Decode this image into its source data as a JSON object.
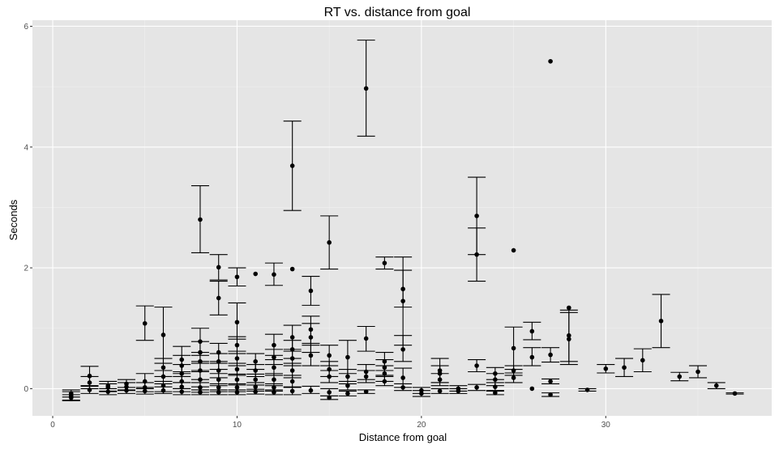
{
  "chart_data": {
    "type": "scatter",
    "title": "RT vs. distance from goal",
    "xlabel": "Distance from goal",
    "ylabel": "Seconds",
    "xlim": [
      -1.1,
      39
    ],
    "ylim": [
      -0.45,
      6.1
    ],
    "x_ticks": [
      0,
      10,
      20,
      30
    ],
    "x_tick_labels": [
      "0",
      "10",
      "20",
      "30"
    ],
    "y_ticks": [
      0,
      2,
      4,
      6
    ],
    "y_tick_labels": [
      "0",
      "2",
      "4",
      "6"
    ],
    "grid": true,
    "legend": "none",
    "colors": {
      "panel": "#e5e5e5",
      "grid_major": "#ffffff",
      "grid_minor": "#f0f0f0",
      "marks": "#000000"
    },
    "series": [
      {
        "points": [
          {
            "x": 1,
            "y": -0.12,
            "lo": -0.19,
            "hi": -0.05
          },
          {
            "x": 1,
            "y": -0.08,
            "lo": -0.14,
            "hi": -0.02
          },
          {
            "x": 1,
            "y": -0.15,
            "lo": -0.2,
            "hi": -0.1
          },
          {
            "x": 2,
            "y": 0.21,
            "lo": 0.05,
            "hi": 0.37
          },
          {
            "x": 2,
            "y": 0.1,
            "lo": 0.0,
            "hi": 0.2
          },
          {
            "x": 2,
            "y": -0.02,
            "lo": -0.08,
            "hi": 0.04
          },
          {
            "x": 3,
            "y": 0.05,
            "lo": -0.05,
            "hi": 0.12
          },
          {
            "x": 3,
            "y": -0.05,
            "lo": -0.1,
            "hi": 0.0
          },
          {
            "x": 3,
            "y": 0.02,
            "lo": -0.04,
            "hi": 0.08
          },
          {
            "x": 4,
            "y": 0.08,
            "lo": -0.02,
            "hi": 0.15
          },
          {
            "x": 4,
            "y": -0.03,
            "lo": -0.08,
            "hi": 0.02
          },
          {
            "x": 4,
            "y": 0.03,
            "lo": -0.03,
            "hi": 0.1
          },
          {
            "x": 5,
            "y": 1.08,
            "lo": 0.8,
            "hi": 1.37
          },
          {
            "x": 5,
            "y": 0.12,
            "lo": 0.0,
            "hi": 0.25
          },
          {
            "x": 5,
            "y": 0.02,
            "lo": -0.05,
            "hi": 0.1
          },
          {
            "x": 5,
            "y": -0.04,
            "lo": -0.09,
            "hi": 0.02
          },
          {
            "x": 6,
            "y": 0.89,
            "lo": 0.42,
            "hi": 1.35
          },
          {
            "x": 6,
            "y": 0.35,
            "lo": 0.2,
            "hi": 0.5
          },
          {
            "x": 6,
            "y": 0.2,
            "lo": 0.08,
            "hi": 0.3
          },
          {
            "x": 6,
            "y": 0.05,
            "lo": -0.05,
            "hi": 0.12
          },
          {
            "x": 6,
            "y": -0.03,
            "lo": -0.08,
            "hi": 0.03
          },
          {
            "x": 7,
            "y": 0.48,
            "lo": 0.28,
            "hi": 0.7
          },
          {
            "x": 7,
            "y": 0.38,
            "lo": 0.2,
            "hi": 0.55
          },
          {
            "x": 7,
            "y": 0.25,
            "lo": 0.1,
            "hi": 0.4
          },
          {
            "x": 7,
            "y": 0.12,
            "lo": 0.0,
            "hi": 0.25
          },
          {
            "x": 7,
            "y": 0.03,
            "lo": -0.05,
            "hi": 0.1
          },
          {
            "x": 7,
            "y": -0.05,
            "lo": -0.1,
            "hi": 0.0
          },
          {
            "x": 8,
            "y": 2.8,
            "lo": 2.25,
            "hi": 3.36
          },
          {
            "x": 8,
            "y": 0.78,
            "lo": 0.55,
            "hi": 1.0
          },
          {
            "x": 8,
            "y": 0.6,
            "lo": 0.42,
            "hi": 0.78
          },
          {
            "x": 8,
            "y": 0.45,
            "lo": 0.3,
            "hi": 0.6
          },
          {
            "x": 8,
            "y": 0.3,
            "lo": 0.15,
            "hi": 0.45
          },
          {
            "x": 8,
            "y": 0.15,
            "lo": 0.03,
            "hi": 0.28
          },
          {
            "x": 8,
            "y": 0.02,
            "lo": -0.06,
            "hi": 0.1
          },
          {
            "x": 8,
            "y": -0.06,
            "lo": -0.1,
            "hi": -0.02
          },
          {
            "x": 9,
            "y": 2.01,
            "lo": 1.8,
            "hi": 2.22
          },
          {
            "x": 9,
            "y": 1.5,
            "lo": 1.22,
            "hi": 1.78
          },
          {
            "x": 9,
            "y": 0.6,
            "lo": 0.45,
            "hi": 0.75
          },
          {
            "x": 9,
            "y": 0.45,
            "lo": 0.32,
            "hi": 0.58
          },
          {
            "x": 9,
            "y": 0.3,
            "lo": 0.18,
            "hi": 0.42
          },
          {
            "x": 9,
            "y": 0.15,
            "lo": 0.05,
            "hi": 0.25
          },
          {
            "x": 9,
            "y": 0.02,
            "lo": -0.05,
            "hi": 0.08
          },
          {
            "x": 9,
            "y": -0.06,
            "lo": -0.1,
            "hi": -0.02
          },
          {
            "x": 10,
            "y": 1.85,
            "lo": 1.7,
            "hi": 2.0
          },
          {
            "x": 10,
            "y": 1.1,
            "lo": 0.82,
            "hi": 1.42
          },
          {
            "x": 10,
            "y": 0.72,
            "lo": 0.58,
            "hi": 0.86
          },
          {
            "x": 10,
            "y": 0.5,
            "lo": 0.38,
            "hi": 0.62
          },
          {
            "x": 10,
            "y": 0.32,
            "lo": 0.22,
            "hi": 0.42
          },
          {
            "x": 10,
            "y": 0.15,
            "lo": 0.06,
            "hi": 0.24
          },
          {
            "x": 10,
            "y": 0.02,
            "lo": -0.05,
            "hi": 0.08
          },
          {
            "x": 10,
            "y": -0.06,
            "lo": -0.1,
            "hi": -0.02
          },
          {
            "x": 11,
            "y": 1.9
          },
          {
            "x": 11,
            "y": 0.45,
            "lo": 0.32,
            "hi": 0.58
          },
          {
            "x": 11,
            "y": 0.3,
            "lo": 0.2,
            "hi": 0.4
          },
          {
            "x": 11,
            "y": 0.15,
            "lo": 0.06,
            "hi": 0.24
          },
          {
            "x": 11,
            "y": 0.03,
            "lo": -0.04,
            "hi": 0.1
          },
          {
            "x": 11,
            "y": -0.05,
            "lo": -0.09,
            "hi": -0.01
          },
          {
            "x": 12,
            "y": 1.89,
            "lo": 1.71,
            "hi": 2.08
          },
          {
            "x": 12,
            "y": 0.72,
            "lo": 0.55,
            "hi": 0.9
          },
          {
            "x": 12,
            "y": 0.52,
            "lo": 0.4,
            "hi": 0.65
          },
          {
            "x": 12,
            "y": 0.35,
            "lo": 0.22,
            "hi": 0.48
          },
          {
            "x": 12,
            "y": 0.15,
            "lo": 0.05,
            "hi": 0.25
          },
          {
            "x": 12,
            "y": 0.02,
            "lo": -0.04,
            "hi": 0.08
          },
          {
            "x": 12,
            "y": -0.06,
            "lo": -0.1,
            "hi": -0.02
          },
          {
            "x": 13,
            "y": 3.69,
            "lo": 2.95,
            "hi": 4.43
          },
          {
            "x": 13,
            "y": 1.98
          },
          {
            "x": 13,
            "y": 0.85,
            "lo": 0.65,
            "hi": 1.05
          },
          {
            "x": 13,
            "y": 0.65,
            "lo": 0.5,
            "hi": 0.8
          },
          {
            "x": 13,
            "y": 0.5,
            "lo": 0.38,
            "hi": 0.62
          },
          {
            "x": 13,
            "y": 0.3,
            "lo": 0.18,
            "hi": 0.42
          },
          {
            "x": 13,
            "y": 0.12,
            "lo": 0.03,
            "hi": 0.22
          },
          {
            "x": 13,
            "y": -0.04,
            "lo": -0.1,
            "hi": 0.02
          },
          {
            "x": 14,
            "y": 1.62,
            "lo": 1.38,
            "hi": 1.86
          },
          {
            "x": 14,
            "y": 0.98,
            "lo": 0.75,
            "hi": 1.2
          },
          {
            "x": 14,
            "y": 0.85,
            "lo": 0.6,
            "hi": 1.08
          },
          {
            "x": 14,
            "y": 0.55,
            "lo": 0.38,
            "hi": 0.72
          },
          {
            "x": 14,
            "y": -0.03,
            "lo": -0.08,
            "hi": 0.04
          },
          {
            "x": 15,
            "y": 2.42,
            "lo": 1.98,
            "hi": 2.86
          },
          {
            "x": 15,
            "y": 0.55,
            "lo": 0.38,
            "hi": 0.72
          },
          {
            "x": 15,
            "y": 0.32,
            "lo": 0.2,
            "hi": 0.45
          },
          {
            "x": 15,
            "y": 0.2,
            "lo": 0.1,
            "hi": 0.3
          },
          {
            "x": 15,
            "y": -0.06,
            "lo": -0.12,
            "hi": 0.0
          },
          {
            "x": 15,
            "y": -0.15,
            "lo": -0.18,
            "hi": -0.12
          },
          {
            "x": 16,
            "y": 0.52,
            "lo": 0.25,
            "hi": 0.8
          },
          {
            "x": 16,
            "y": 0.2,
            "lo": 0.08,
            "hi": 0.32
          },
          {
            "x": 16,
            "y": 0.05,
            "lo": -0.02,
            "hi": 0.12
          },
          {
            "x": 16,
            "y": -0.08,
            "lo": -0.12,
            "hi": -0.04
          },
          {
            "x": 17,
            "y": 4.97,
            "lo": 4.18,
            "hi": 5.77
          },
          {
            "x": 17,
            "y": 0.83,
            "lo": 0.62,
            "hi": 1.03
          },
          {
            "x": 17,
            "y": 0.28,
            "lo": 0.15,
            "hi": 0.4
          },
          {
            "x": 17,
            "y": 0.2,
            "lo": 0.1,
            "hi": 0.3
          },
          {
            "x": 17,
            "y": -0.05,
            "lo": -0.08,
            "hi": -0.02
          },
          {
            "x": 18,
            "y": 2.08,
            "lo": 1.98,
            "hi": 2.18
          },
          {
            "x": 18,
            "y": 0.45,
            "lo": 0.3,
            "hi": 0.6
          },
          {
            "x": 18,
            "y": 0.35,
            "lo": 0.22,
            "hi": 0.48
          },
          {
            "x": 18,
            "y": 0.25,
            "lo": 0.12,
            "hi": 0.38
          },
          {
            "x": 18,
            "y": 0.12,
            "lo": 0.05,
            "hi": 0.2
          },
          {
            "x": 19,
            "y": 1.65,
            "lo": 1.35,
            "hi": 1.96
          },
          {
            "x": 19,
            "y": 1.45,
            "lo": 0.72,
            "hi": 2.18
          },
          {
            "x": 19,
            "y": 0.65,
            "lo": 0.45,
            "hi": 0.88
          },
          {
            "x": 19,
            "y": 0.18,
            "lo": 0.02,
            "hi": 0.34
          },
          {
            "x": 19,
            "y": 0.02,
            "lo": -0.03,
            "hi": 0.08
          },
          {
            "x": 20,
            "y": -0.03,
            "lo": -0.08,
            "hi": 0.02
          },
          {
            "x": 20,
            "y": -0.08,
            "lo": -0.13,
            "hi": -0.03
          },
          {
            "x": 21,
            "y": 0.3,
            "lo": 0.1,
            "hi": 0.5
          },
          {
            "x": 21,
            "y": 0.25,
            "lo": 0.1,
            "hi": 0.38
          },
          {
            "x": 21,
            "y": 0.15,
            "lo": 0.05,
            "hi": 0.25
          },
          {
            "x": 21,
            "y": -0.04,
            "lo": -0.08,
            "hi": 0.0
          },
          {
            "x": 22,
            "y": 0.0,
            "lo": -0.04,
            "hi": 0.05
          },
          {
            "x": 22,
            "y": -0.04,
            "lo": -0.08,
            "hi": 0.0
          },
          {
            "x": 23,
            "y": 2.86,
            "lo": 2.22,
            "hi": 3.5
          },
          {
            "x": 23,
            "y": 2.22,
            "lo": 1.78,
            "hi": 2.66
          },
          {
            "x": 23,
            "y": 0.38,
            "lo": 0.28,
            "hi": 0.48
          },
          {
            "x": 23,
            "y": 0.02,
            "lo": -0.03,
            "hi": 0.07
          },
          {
            "x": 24,
            "y": 0.25,
            "lo": 0.15,
            "hi": 0.35
          },
          {
            "x": 24,
            "y": 0.15,
            "lo": 0.05,
            "hi": 0.25
          },
          {
            "x": 24,
            "y": 0.03,
            "lo": -0.03,
            "hi": 0.1
          },
          {
            "x": 24,
            "y": -0.07,
            "lo": -0.1,
            "hi": -0.04
          },
          {
            "x": 25,
            "y": 2.29
          },
          {
            "x": 25,
            "y": 0.67,
            "lo": 0.32,
            "hi": 1.02
          },
          {
            "x": 25,
            "y": 0.3,
            "lo": 0.22,
            "hi": 0.38
          },
          {
            "x": 25,
            "y": 0.18,
            "lo": 0.1,
            "hi": 0.26
          },
          {
            "x": 26,
            "y": 0.95,
            "lo": 0.81,
            "hi": 1.1
          },
          {
            "x": 26,
            "y": 0.52,
            "lo": 0.38,
            "hi": 0.68
          },
          {
            "x": 26,
            "y": 0.0
          },
          {
            "x": 27,
            "y": 5.42
          },
          {
            "x": 27,
            "y": 0.56,
            "lo": 0.44,
            "hi": 0.68
          },
          {
            "x": 27,
            "y": 0.12,
            "lo": 0.08,
            "hi": 0.16
          },
          {
            "x": 27,
            "y": -0.1,
            "lo": -0.13,
            "hi": -0.07
          },
          {
            "x": 28,
            "y": 1.34
          },
          {
            "x": 28,
            "y": 0.88,
            "lo": 0.45,
            "hi": 1.3
          },
          {
            "x": 28,
            "y": 0.82,
            "lo": 0.4,
            "hi": 1.26
          },
          {
            "x": 29,
            "y": -0.02,
            "lo": -0.04,
            "hi": 0.0
          },
          {
            "x": 30,
            "y": 0.33,
            "lo": 0.26,
            "hi": 0.4
          },
          {
            "x": 31,
            "y": 0.35,
            "lo": 0.2,
            "hi": 0.5
          },
          {
            "x": 32,
            "y": 0.47,
            "lo": 0.28,
            "hi": 0.66
          },
          {
            "x": 33,
            "y": 1.12,
            "lo": 0.68,
            "hi": 1.56
          },
          {
            "x": 34,
            "y": 0.2,
            "lo": 0.13,
            "hi": 0.27
          },
          {
            "x": 35,
            "y": 0.28,
            "lo": 0.18,
            "hi": 0.38
          },
          {
            "x": 36,
            "y": 0.05,
            "lo": 0.0,
            "hi": 0.1
          },
          {
            "x": 37,
            "y": -0.08,
            "lo": -0.09,
            "hi": -0.07
          }
        ]
      }
    ]
  }
}
